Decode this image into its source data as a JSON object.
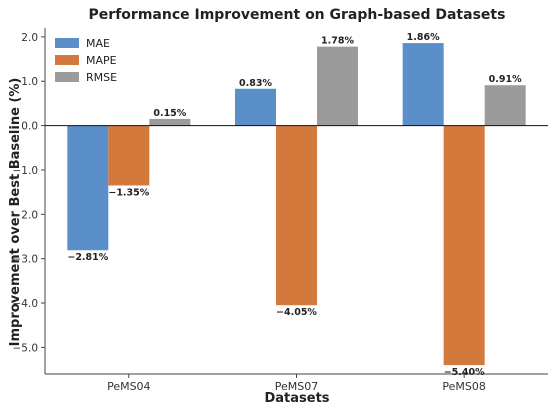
{
  "chart_data": {
    "type": "bar",
    "title": "Performance Improvement on Graph-based Datasets",
    "xlabel": "Datasets",
    "ylabel": "Improvement over Best Baseline (%)",
    "categories": [
      "PeMS04",
      "PeMS07",
      "PeMS08"
    ],
    "ylim": [
      -5.6,
      2.2
    ],
    "yticks": [
      2.0,
      1.0,
      0.0,
      -1.0,
      -2.0,
      -3.0,
      -4.0,
      -5.0
    ],
    "ytick_labels": [
      "2.0",
      "1.0",
      "0.0",
      "−1.0",
      "−2.0",
      "−3.0",
      "−4.0",
      "−5.0"
    ],
    "grid": false,
    "legend_position": "top-left",
    "series": [
      {
        "name": "MAE",
        "color": "#5b8fc9",
        "values": [
          -2.81,
          0.83,
          1.86
        ],
        "labels": [
          "−2.81%",
          "0.83%",
          "1.86%"
        ]
      },
      {
        "name": "MAPE",
        "color": "#d4793c",
        "values": [
          -1.35,
          -4.05,
          -5.4
        ],
        "labels": [
          "−1.35%",
          "−4.05%",
          "−5.40%"
        ]
      },
      {
        "name": "RMSE",
        "color": "#9b9b9b",
        "values": [
          0.15,
          1.78,
          0.91
        ],
        "labels": [
          "0.15%",
          "1.78%",
          "0.91%"
        ]
      }
    ]
  }
}
